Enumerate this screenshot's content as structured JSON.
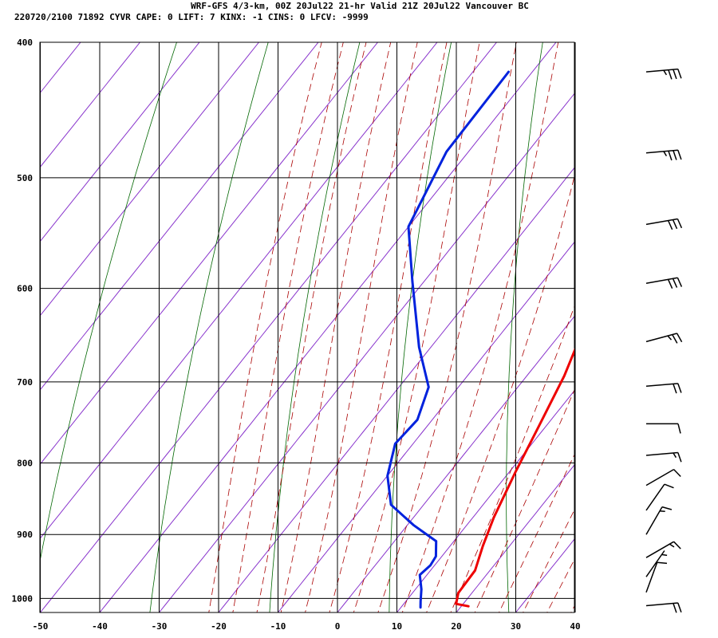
{
  "header": {
    "line1": "WRF-GFS 4/3-km, 00Z 20Jul22 21-hr Valid 21Z 20Jul22 Vancouver BC",
    "line2": "220720/2100 71892  CYVR    CAPE:     0 LIFT:     7 KINX:    -1 CINS:     0 LFCV: -9999"
  },
  "colors": {
    "temperature": "#ee0000",
    "dewpoint": "#0022dd",
    "isotherm": "#8833cc",
    "dry_adiabat": "#006600",
    "moist_adiabat": "#aa0000",
    "grid": "#000000"
  },
  "chart_data": {
    "type": "line",
    "title": "",
    "xlabel": "",
    "ylabel": "",
    "x_ticks": [
      -50,
      -40,
      -30,
      -20,
      -10,
      0,
      10,
      20,
      30,
      40
    ],
    "y_ticks": [
      400,
      500,
      600,
      700,
      800,
      900,
      1000
    ],
    "xlim": [
      -50,
      40
    ],
    "ylim": [
      1040,
      400
    ],
    "y_scale": "log-pressure",
    "grid": true,
    "series": [
      {
        "key": "temperature",
        "points": [
          [
            -21.0,
            424
          ],
          [
            -13.2,
            481
          ],
          [
            -6.0,
            542
          ],
          [
            -0.5,
            600
          ],
          [
            3.5,
            646
          ],
          [
            6.3,
            693
          ],
          [
            8.8,
            753
          ],
          [
            11.0,
            811
          ],
          [
            13.5,
            875
          ],
          [
            15.5,
            917
          ],
          [
            17.5,
            955
          ],
          [
            17.7,
            991
          ],
          [
            18.8,
            1009
          ],
          [
            21.2,
            1013
          ]
        ]
      },
      {
        "key": "dewpoint",
        "points": [
          [
            -44.0,
            420
          ],
          [
            -43.7,
            479
          ],
          [
            -40.0,
            542
          ],
          [
            -32.0,
            593
          ],
          [
            -22.0,
            661
          ],
          [
            -15.0,
            706
          ],
          [
            -12.5,
            745
          ],
          [
            -13.0,
            775
          ],
          [
            -10.0,
            817
          ],
          [
            -5.5,
            857
          ],
          [
            1.0,
            886
          ],
          [
            7.0,
            910
          ],
          [
            9.0,
            933
          ],
          [
            9.3,
            947
          ],
          [
            8.8,
            962
          ],
          [
            11.0,
            985
          ],
          [
            12.5,
            1005
          ],
          [
            13.3,
            1015
          ]
        ]
      }
    ],
    "wind_barbs": [
      {
        "p": 420,
        "dir": 265,
        "spd": 35
      },
      {
        "p": 480,
        "dir": 265,
        "spd": 35
      },
      {
        "p": 540,
        "dir": 260,
        "spd": 30
      },
      {
        "p": 595,
        "dir": 260,
        "spd": 30
      },
      {
        "p": 655,
        "dir": 255,
        "spd": 25
      },
      {
        "p": 705,
        "dir": 265,
        "spd": 20
      },
      {
        "p": 750,
        "dir": 270,
        "spd": 10
      },
      {
        "p": 790,
        "dir": 265,
        "spd": 15
      },
      {
        "p": 830,
        "dir": 240,
        "spd": 10
      },
      {
        "p": 865,
        "dir": 215,
        "spd": 10
      },
      {
        "p": 900,
        "dir": 210,
        "spd": 15
      },
      {
        "p": 935,
        "dir": 240,
        "spd": 15
      },
      {
        "p": 965,
        "dir": 215,
        "spd": 5
      },
      {
        "p": 990,
        "dir": 200,
        "spd": 10
      },
      {
        "p": 1012,
        "dir": 265,
        "spd": 20
      }
    ]
  }
}
